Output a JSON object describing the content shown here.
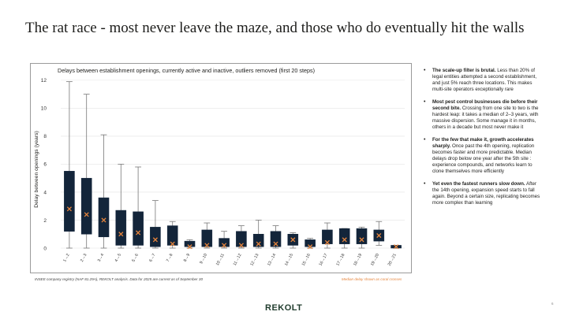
{
  "slide": {
    "title": "The rat race - most never leave the maze, and those who do eventually hit the walls",
    "footnote": "INSEE company registry (NAF 81.29A), REKOLT analysis. Data for 2025 are current as of September 30",
    "median_note": "Median delay shown as coral crosses",
    "logo": "REKOLT",
    "page_number": "6"
  },
  "bullets": [
    {
      "bold": "The scale-up filter is brutal.",
      "text": " Less than 20% of legal entities attempted a second establishment, and just 5% reach three locations. This makes multi-site operators exceptionally rare"
    },
    {
      "bold": "Most pest control businesses die before their second bite.",
      "text": " Crossing from one site to two is the hardest leap: it takes a median of 2–3 years, with massive dispersion. Some manage it in months, others in a decade but most never make it"
    },
    {
      "bold": "For the few that make it, growth accelerates sharply.",
      "text": " Once past the 4th opening, replication becomes faster and more predictable. Median delays drop below one year after the 5th site : experience compounds, and networks learn to clone themselves more efficiently"
    },
    {
      "bold": "Yet even the fastest runners slow down.",
      "text": " After the 14th opening, expansion speed starts to fall again. Beyond a certain size, replicating becomes more complex than learning"
    }
  ],
  "colors": {
    "box": "#13253a",
    "median": "#e5843c",
    "whisker": "#777777",
    "grid": "#e3e3e3"
  },
  "chart_data": {
    "type": "box",
    "title": "Delays between establishment openings, currently active and inactive, outliers removed (first 20 steps)",
    "ylabel": "Delay between openings (years)",
    "ylim": [
      0,
      12.5
    ],
    "yticks": [
      0,
      2,
      4,
      6,
      8,
      10,
      12
    ],
    "grid": true,
    "categories": [
      "1→2",
      "2→3",
      "3→4",
      "4→5",
      "5→6",
      "6→7",
      "7→8",
      "8→9",
      "9→10",
      "10→11",
      "11→12",
      "12→13",
      "13→14",
      "14→15",
      "15→16",
      "16→17",
      "17→18",
      "18→19",
      "19→20",
      "20→21"
    ],
    "boxes": [
      {
        "min": 0,
        "q1": 1.2,
        "median": 2.8,
        "q3": 5.5,
        "max": 11.9
      },
      {
        "min": 0,
        "q1": 1.0,
        "median": 2.4,
        "q3": 5.0,
        "max": 11.0
      },
      {
        "min": 0,
        "q1": 0.8,
        "median": 2.0,
        "q3": 3.6,
        "max": 8.1
      },
      {
        "min": 0,
        "q1": 0.2,
        "median": 1.0,
        "q3": 2.7,
        "max": 6.0
      },
      {
        "min": 0,
        "q1": 0.2,
        "median": 1.1,
        "q3": 2.6,
        "max": 5.8
      },
      {
        "min": 0,
        "q1": 0.1,
        "median": 0.6,
        "q3": 1.5,
        "max": 3.4
      },
      {
        "min": 0,
        "q1": 0.2,
        "median": 0.3,
        "q3": 1.6,
        "max": 1.9
      },
      {
        "min": 0,
        "q1": 0.1,
        "median": 0.1,
        "q3": 0.5,
        "max": 0.6
      },
      {
        "min": 0,
        "q1": 0.1,
        "median": 0.2,
        "q3": 1.3,
        "max": 1.8
      },
      {
        "min": 0,
        "q1": 0.1,
        "median": 0.2,
        "q3": 0.7,
        "max": 1.2
      },
      {
        "min": 0,
        "q1": 0.1,
        "median": 0.2,
        "q3": 1.2,
        "max": 1.6
      },
      {
        "min": 0,
        "q1": 0.1,
        "median": 0.3,
        "q3": 1.0,
        "max": 2.0
      },
      {
        "min": 0,
        "q1": 0.1,
        "median": 0.3,
        "q3": 1.2,
        "max": 1.6
      },
      {
        "min": 0,
        "q1": 0.2,
        "median": 0.6,
        "q3": 1.0,
        "max": 1.1
      },
      {
        "min": 0,
        "q1": 0.1,
        "median": 0.1,
        "q3": 0.6,
        "max": 0.7
      },
      {
        "min": 0,
        "q1": 0.3,
        "median": 0.4,
        "q3": 1.3,
        "max": 1.8
      },
      {
        "min": 0,
        "q1": 0.3,
        "median": 0.6,
        "q3": 1.4,
        "max": 1.4
      },
      {
        "min": 0,
        "q1": 0.3,
        "median": 0.6,
        "q3": 1.4,
        "max": 1.5
      },
      {
        "min": 0.2,
        "q1": 0.5,
        "median": 0.9,
        "q3": 1.3,
        "max": 1.9
      },
      {
        "min": 0,
        "q1": 0,
        "median": 0.1,
        "q3": 0.2,
        "max": 0.2
      }
    ]
  }
}
